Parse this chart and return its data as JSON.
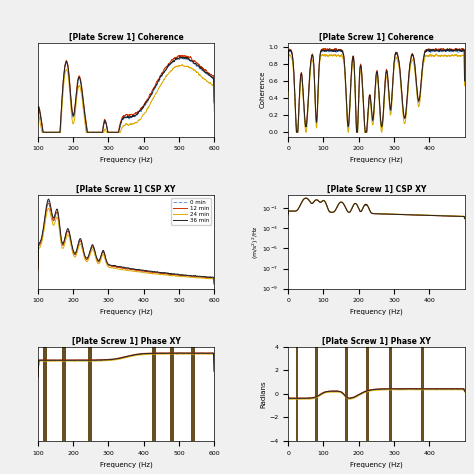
{
  "subplot_titles": [
    "[Plate Screw 1] Coherence",
    "[Plate Screw 1] Coherence",
    "[Plate Screw 1] CSP XY",
    "[Plate Screw 1] CSP XY",
    "[Plate Screw 1] Phase XY",
    "[Plate Screw 1] Phase XY"
  ],
  "legend_labels": [
    "0 min",
    "12 min",
    "24 min",
    "36 min"
  ],
  "legend_colors": [
    "#6699dd",
    "#cc3300",
    "#ddaa00",
    "#222222"
  ],
  "legend_styles": [
    "--",
    "-",
    "-",
    "-"
  ],
  "xlim_left": [
    100,
    600
  ],
  "xlim_left_ticks": [
    100,
    200,
    300,
    400,
    500,
    600
  ],
  "xlim_right": [
    0,
    500
  ],
  "xlim_right_ticks": [
    0,
    100,
    200,
    300,
    400
  ],
  "xlabel": "Frequency (Hz)",
  "ylabel_coherence": "Coherence",
  "ylabel_csp": "(m/s$^2$)$^2$/Hz",
  "ylabel_phase": "Radians",
  "coh_right_yticks": [
    0,
    0.2,
    0.4,
    0.6,
    0.8,
    1.0
  ],
  "phase_right_yticks": [
    -4,
    -2,
    0,
    2,
    4
  ],
  "background_color": "#ffffff",
  "fig_background": "#f0f0f0"
}
